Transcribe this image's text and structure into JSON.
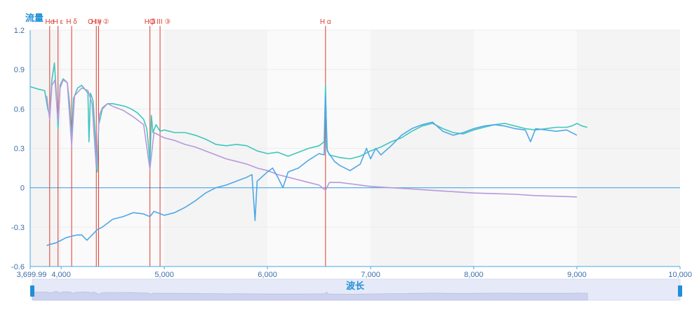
{
  "chart_data": {
    "type": "line",
    "ylabel": "流量",
    "xlabel": "波长",
    "xlim": [
      3699.99,
      10000
    ],
    "ylim": [
      -0.6,
      1.2
    ],
    "x_ticks": [
      {
        "value": 3699.99,
        "label": "3,699.99"
      },
      {
        "value": 4000,
        "label": "4,000"
      },
      {
        "value": 5000,
        "label": "5,000"
      },
      {
        "value": 6000,
        "label": "6,000"
      },
      {
        "value": 7000,
        "label": "7,000"
      },
      {
        "value": 8000,
        "label": "8,000"
      },
      {
        "value": 9000,
        "label": "9,000"
      },
      {
        "value": 10000,
        "label": "10,000"
      }
    ],
    "y_ticks": [
      {
        "value": 1.2,
        "label": "1.2"
      },
      {
        "value": 0.9,
        "label": "0.9"
      },
      {
        "value": 0.6,
        "label": "0.6"
      },
      {
        "value": 0.3,
        "label": "0.3"
      },
      {
        "value": 0,
        "label": "0"
      },
      {
        "value": -0.3,
        "label": "-0.3"
      },
      {
        "value": -0.6,
        "label": "-0.6"
      }
    ],
    "grid": true,
    "zero_line_color": "#4aa8e6",
    "spectral_lines": [
      {
        "x": 3889,
        "label": "He"
      },
      {
        "x": 3970,
        "label": "H ε"
      },
      {
        "x": 4102,
        "label": "H δ"
      },
      {
        "x": 4341,
        "label": "H γ"
      },
      {
        "x": 4363,
        "label": "O III ②"
      },
      {
        "x": 4861,
        "label": "H β"
      },
      {
        "x": 4959,
        "label": "O III ③"
      },
      {
        "x": 6563,
        "label": "H α"
      }
    ],
    "spectral_line_color": "#e03a2e",
    "series": [
      {
        "color": "#3fc7bd",
        "points": [
          [
            3700,
            0.77
          ],
          [
            3780,
            0.75
          ],
          [
            3840,
            0.74
          ],
          [
            3870,
            0.6
          ],
          [
            3889,
            0.55
          ],
          [
            3910,
            0.82
          ],
          [
            3935,
            0.95
          ],
          [
            3955,
            0.7
          ],
          [
            3970,
            0.45
          ],
          [
            3990,
            0.78
          ],
          [
            4020,
            0.83
          ],
          [
            4060,
            0.8
          ],
          [
            4085,
            0.62
          ],
          [
            4102,
            0.35
          ],
          [
            4120,
            0.68
          ],
          [
            4160,
            0.76
          ],
          [
            4200,
            0.78
          ],
          [
            4240,
            0.74
          ],
          [
            4260,
            0.72
          ],
          [
            4270,
            0.35
          ],
          [
            4285,
            0.72
          ],
          [
            4310,
            0.66
          ],
          [
            4330,
            0.4
          ],
          [
            4341,
            0.18
          ],
          [
            4350,
            0.12
          ],
          [
            4365,
            0.48
          ],
          [
            4400,
            0.6
          ],
          [
            4450,
            0.64
          ],
          [
            4500,
            0.64
          ],
          [
            4560,
            0.63
          ],
          [
            4620,
            0.62
          ],
          [
            4680,
            0.6
          ],
          [
            4740,
            0.57
          ],
          [
            4800,
            0.52
          ],
          [
            4830,
            0.45
          ],
          [
            4850,
            0.3
          ],
          [
            4861,
            0.18
          ],
          [
            4875,
            0.55
          ],
          [
            4890,
            0.42
          ],
          [
            4920,
            0.48
          ],
          [
            4959,
            0.43
          ],
          [
            5000,
            0.44
          ],
          [
            5100,
            0.42
          ],
          [
            5200,
            0.42
          ],
          [
            5300,
            0.4
          ],
          [
            5400,
            0.37
          ],
          [
            5500,
            0.33
          ],
          [
            5600,
            0.32
          ],
          [
            5700,
            0.33
          ],
          [
            5800,
            0.32
          ],
          [
            5900,
            0.28
          ],
          [
            6000,
            0.26
          ],
          [
            6100,
            0.27
          ],
          [
            6200,
            0.24
          ],
          [
            6300,
            0.27
          ],
          [
            6400,
            0.3
          ],
          [
            6500,
            0.32
          ],
          [
            6550,
            0.35
          ],
          [
            6563,
            0.78
          ],
          [
            6575,
            0.3
          ],
          [
            6600,
            0.25
          ],
          [
            6700,
            0.23
          ],
          [
            6800,
            0.22
          ],
          [
            6900,
            0.24
          ],
          [
            7000,
            0.28
          ],
          [
            7100,
            0.31
          ],
          [
            7200,
            0.35
          ],
          [
            7300,
            0.38
          ],
          [
            7400,
            0.43
          ],
          [
            7500,
            0.47
          ],
          [
            7600,
            0.49
          ],
          [
            7700,
            0.45
          ],
          [
            7800,
            0.42
          ],
          [
            7900,
            0.41
          ],
          [
            8000,
            0.44
          ],
          [
            8100,
            0.46
          ],
          [
            8200,
            0.48
          ],
          [
            8300,
            0.49
          ],
          [
            8400,
            0.47
          ],
          [
            8500,
            0.45
          ],
          [
            8600,
            0.44
          ],
          [
            8700,
            0.45
          ],
          [
            8800,
            0.46
          ],
          [
            8900,
            0.46
          ],
          [
            8950,
            0.47
          ],
          [
            9000,
            0.49
          ],
          [
            9050,
            0.47
          ],
          [
            9100,
            0.46
          ]
        ]
      },
      {
        "color": "#b799dd",
        "points": [
          [
            3860,
            0.7
          ],
          [
            3889,
            0.52
          ],
          [
            3910,
            0.78
          ],
          [
            3940,
            0.82
          ],
          [
            3970,
            0.5
          ],
          [
            3990,
            0.76
          ],
          [
            4020,
            0.82
          ],
          [
            4060,
            0.8
          ],
          [
            4102,
            0.32
          ],
          [
            4130,
            0.7
          ],
          [
            4200,
            0.76
          ],
          [
            4260,
            0.74
          ],
          [
            4300,
            0.64
          ],
          [
            4341,
            0.15
          ],
          [
            4370,
            0.55
          ],
          [
            4400,
            0.61
          ],
          [
            4450,
            0.64
          ],
          [
            4500,
            0.62
          ],
          [
            4600,
            0.59
          ],
          [
            4700,
            0.54
          ],
          [
            4800,
            0.48
          ],
          [
            4861,
            0.14
          ],
          [
            4900,
            0.42
          ],
          [
            5000,
            0.38
          ],
          [
            5100,
            0.36
          ],
          [
            5200,
            0.33
          ],
          [
            5300,
            0.31
          ],
          [
            5400,
            0.28
          ],
          [
            5500,
            0.25
          ],
          [
            5600,
            0.22
          ],
          [
            5700,
            0.2
          ],
          [
            5800,
            0.18
          ],
          [
            5900,
            0.15
          ],
          [
            6000,
            0.13
          ],
          [
            6100,
            0.1
          ],
          [
            6200,
            0.08
          ],
          [
            6300,
            0.06
          ],
          [
            6400,
            0.04
          ],
          [
            6500,
            0.02
          ],
          [
            6563,
            -0.02
          ],
          [
            6600,
            0.04
          ],
          [
            6700,
            0.04
          ],
          [
            6800,
            0.03
          ],
          [
            6900,
            0.02
          ],
          [
            7000,
            0.01
          ],
          [
            7200,
            0.0
          ],
          [
            7400,
            -0.01
          ],
          [
            7600,
            -0.02
          ],
          [
            7800,
            -0.03
          ],
          [
            8000,
            -0.04
          ],
          [
            8200,
            -0.045
          ],
          [
            8400,
            -0.05
          ],
          [
            8600,
            -0.06
          ],
          [
            8800,
            -0.065
          ],
          [
            9000,
            -0.07
          ]
        ]
      },
      {
        "color": "#4ea8e8",
        "points": [
          [
            3860,
            -0.44
          ],
          [
            3900,
            -0.43
          ],
          [
            3950,
            -0.42
          ],
          [
            4000,
            -0.4
          ],
          [
            4050,
            -0.38
          ],
          [
            4100,
            -0.37
          ],
          [
            4150,
            -0.36
          ],
          [
            4200,
            -0.36
          ],
          [
            4250,
            -0.4
          ],
          [
            4300,
            -0.36
          ],
          [
            4350,
            -0.32
          ],
          [
            4400,
            -0.3
          ],
          [
            4450,
            -0.27
          ],
          [
            4500,
            -0.24
          ],
          [
            4600,
            -0.22
          ],
          [
            4700,
            -0.19
          ],
          [
            4800,
            -0.2
          ],
          [
            4861,
            -0.22
          ],
          [
            4900,
            -0.18
          ],
          [
            5000,
            -0.21
          ],
          [
            5100,
            -0.19
          ],
          [
            5200,
            -0.15
          ],
          [
            5300,
            -0.1
          ],
          [
            5400,
            -0.04
          ],
          [
            5500,
            0.0
          ],
          [
            5600,
            0.02
          ],
          [
            5700,
            0.05
          ],
          [
            5800,
            0.08
          ],
          [
            5850,
            0.1
          ],
          [
            5880,
            -0.25
          ],
          [
            5900,
            0.05
          ],
          [
            6000,
            0.12
          ],
          [
            6050,
            0.15
          ],
          [
            6100,
            0.08
          ],
          [
            6150,
            0.0
          ],
          [
            6200,
            0.12
          ],
          [
            6300,
            0.15
          ],
          [
            6400,
            0.21
          ],
          [
            6500,
            0.26
          ],
          [
            6550,
            0.25
          ],
          [
            6563,
            0.7
          ],
          [
            6580,
            0.28
          ],
          [
            6650,
            0.2
          ],
          [
            6700,
            0.17
          ],
          [
            6800,
            0.13
          ],
          [
            6900,
            0.18
          ],
          [
            6960,
            0.3
          ],
          [
            7000,
            0.22
          ],
          [
            7050,
            0.3
          ],
          [
            7100,
            0.25
          ],
          [
            7200,
            0.32
          ],
          [
            7300,
            0.4
          ],
          [
            7400,
            0.45
          ],
          [
            7500,
            0.48
          ],
          [
            7600,
            0.5
          ],
          [
            7700,
            0.43
          ],
          [
            7800,
            0.4
          ],
          [
            7900,
            0.42
          ],
          [
            8000,
            0.45
          ],
          [
            8100,
            0.47
          ],
          [
            8200,
            0.48
          ],
          [
            8300,
            0.47
          ],
          [
            8400,
            0.45
          ],
          [
            8500,
            0.44
          ],
          [
            8550,
            0.35
          ],
          [
            8600,
            0.45
          ],
          [
            8700,
            0.44
          ],
          [
            8800,
            0.43
          ],
          [
            8900,
            0.44
          ],
          [
            9000,
            0.4
          ]
        ]
      }
    ]
  },
  "slider": {
    "label": "波长"
  }
}
